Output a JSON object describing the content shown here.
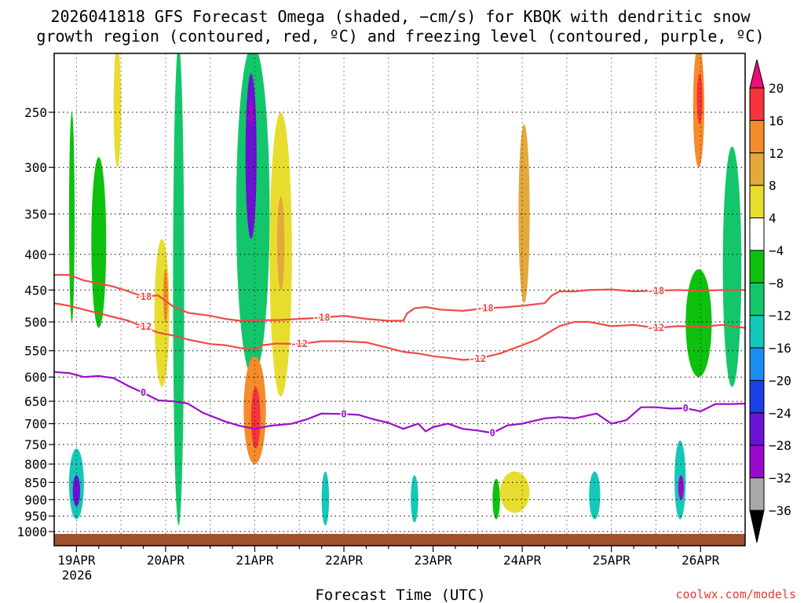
{
  "chart_data": {
    "type": "heatmap",
    "title_line1": "2026041818 GFS Forecast Omega (shaded, −cm/s) for KBQK with dendritic snow",
    "title_line2": "growth region (contoured, red, ºC) and freezing level (contoured, purple, ºC)",
    "xlabel": "Forecast Time (UTC)",
    "ylabel": "",
    "x_range_hours": [
      -6,
      180
    ],
    "x_ticks": [
      {
        "label": "19APR",
        "hour": 0
      },
      {
        "label": "20APR",
        "hour": 24
      },
      {
        "label": "21APR",
        "hour": 48
      },
      {
        "label": "22APR",
        "hour": 72
      },
      {
        "label": "23APR",
        "hour": 96
      },
      {
        "label": "24APR",
        "hour": 120
      },
      {
        "label": "25APR",
        "hour": 144
      },
      {
        "label": "26APR",
        "hour": 168
      }
    ],
    "x_year_label": "2026",
    "y_range_hPa": [
      1000,
      200
    ],
    "y_ticks": [
      250,
      300,
      350,
      400,
      450,
      500,
      550,
      600,
      650,
      700,
      750,
      800,
      850,
      900,
      950,
      1000
    ],
    "grid": true,
    "colorbar": {
      "labels": [
        20,
        16,
        12,
        8,
        4,
        -4,
        -8,
        -12,
        -16,
        -20,
        -24,
        -28,
        -32,
        -36
      ],
      "colors": [
        "#ec0d78",
        "#f7333b",
        "#f48c2b",
        "#e3a93b",
        "#e8dd2e",
        "#ffffff",
        "#0ec10e",
        "#14c66b",
        "#14c8b9",
        "#1a8df2",
        "#1a3fe6",
        "#6a13d3",
        "#9a08c9",
        "#a8a8a8",
        "#000000"
      ]
    },
    "contours": [
      {
        "name": "-18 ºC",
        "color": "#f04a44",
        "labels": [
          "-18",
          "-18",
          "-18",
          "-18"
        ],
        "points": [
          [
            -6,
            428
          ],
          [
            -2,
            428
          ],
          [
            2,
            436
          ],
          [
            6,
            440
          ],
          [
            10,
            445
          ],
          [
            14,
            452
          ],
          [
            18,
            460
          ],
          [
            22,
            458
          ],
          [
            26,
            475
          ],
          [
            30,
            485
          ],
          [
            36,
            490
          ],
          [
            40,
            495
          ],
          [
            44,
            498
          ],
          [
            48,
            497
          ],
          [
            54,
            497
          ],
          [
            60,
            495
          ],
          [
            66,
            493
          ],
          [
            72,
            490
          ],
          [
            78,
            495
          ],
          [
            84,
            498
          ],
          [
            88,
            498
          ],
          [
            89,
            486
          ],
          [
            91,
            478
          ],
          [
            94,
            476
          ],
          [
            98,
            480
          ],
          [
            104,
            482
          ],
          [
            110,
            478
          ],
          [
            116,
            476
          ],
          [
            120,
            474
          ],
          [
            126,
            470
          ],
          [
            128,
            458
          ],
          [
            130,
            452
          ],
          [
            134,
            452
          ],
          [
            138,
            450
          ],
          [
            144,
            449
          ],
          [
            150,
            452
          ],
          [
            156,
            451
          ],
          [
            162,
            450
          ],
          [
            168,
            451
          ],
          [
            174,
            450
          ],
          [
            180,
            450
          ]
        ]
      },
      {
        "name": "-12 ºC",
        "color": "#f04a44",
        "labels": [
          "-12",
          "-12",
          "-12",
          "-12"
        ],
        "points": [
          [
            -6,
            470
          ],
          [
            -2,
            474
          ],
          [
            2,
            480
          ],
          [
            6,
            486
          ],
          [
            10,
            492
          ],
          [
            14,
            498
          ],
          [
            18,
            508
          ],
          [
            22,
            518
          ],
          [
            26,
            523
          ],
          [
            30,
            530
          ],
          [
            36,
            538
          ],
          [
            40,
            540
          ],
          [
            44,
            545
          ],
          [
            48,
            548
          ],
          [
            50,
            540
          ],
          [
            54,
            537
          ],
          [
            60,
            538
          ],
          [
            66,
            533
          ],
          [
            72,
            533
          ],
          [
            78,
            535
          ],
          [
            84,
            545
          ],
          [
            88,
            552
          ],
          [
            92,
            555
          ],
          [
            96,
            560
          ],
          [
            100,
            563
          ],
          [
            104,
            567
          ],
          [
            108,
            565
          ],
          [
            114,
            555
          ],
          [
            120,
            540
          ],
          [
            124,
            530
          ],
          [
            126,
            522
          ],
          [
            130,
            507
          ],
          [
            134,
            500
          ],
          [
            138,
            500
          ],
          [
            144,
            507
          ],
          [
            150,
            505
          ],
          [
            156,
            510
          ],
          [
            162,
            507
          ],
          [
            168,
            508
          ],
          [
            174,
            505
          ],
          [
            180,
            510
          ]
        ]
      },
      {
        "name": "0 ºC freezing level",
        "color": "#9a0fc8",
        "labels": [
          "0",
          "0",
          "0",
          "0"
        ],
        "points": [
          [
            -6,
            590
          ],
          [
            -2,
            592
          ],
          [
            2,
            600
          ],
          [
            6,
            598
          ],
          [
            10,
            602
          ],
          [
            14,
            618
          ],
          [
            18,
            632
          ],
          [
            22,
            648
          ],
          [
            26,
            650
          ],
          [
            30,
            655
          ],
          [
            34,
            675
          ],
          [
            40,
            695
          ],
          [
            44,
            705
          ],
          [
            48,
            712
          ],
          [
            52,
            705
          ],
          [
            58,
            700
          ],
          [
            62,
            690
          ],
          [
            66,
            677
          ],
          [
            72,
            678
          ],
          [
            76,
            680
          ],
          [
            80,
            690
          ],
          [
            84,
            698
          ],
          [
            88,
            712
          ],
          [
            92,
            700
          ],
          [
            94,
            718
          ],
          [
            96,
            708
          ],
          [
            100,
            700
          ],
          [
            104,
            712
          ],
          [
            108,
            716
          ],
          [
            112,
            722
          ],
          [
            116,
            704
          ],
          [
            120,
            700
          ],
          [
            126,
            688
          ],
          [
            130,
            685
          ],
          [
            134,
            688
          ],
          [
            140,
            677
          ],
          [
            144,
            700
          ],
          [
            148,
            692
          ],
          [
            152,
            663
          ],
          [
            156,
            663
          ],
          [
            160,
            666
          ],
          [
            164,
            665
          ],
          [
            168,
            672
          ],
          [
            172,
            656
          ],
          [
            176,
            656
          ],
          [
            180,
            655
          ]
        ]
      }
    ],
    "omega_features": [
      {
        "hour_range": [
          -2,
          -0.5
        ],
        "hPa_range": [
          500,
          250
        ],
        "value": -8
      },
      {
        "hour_range": [
          -2,
          2
        ],
        "hPa_range": [
          960,
          760
        ],
        "value": -14
      },
      {
        "hour_range": [
          -1,
          1
        ],
        "hPa_range": [
          920,
          830
        ],
        "value": -28
      },
      {
        "hour_range": [
          4,
          8
        ],
        "hPa_range": [
          510,
          290
        ],
        "value": -8
      },
      {
        "hour_range": [
          10,
          12
        ],
        "hPa_range": [
          300,
          200
        ],
        "value": 6
      },
      {
        "hour_range": [
          21,
          25
        ],
        "hPa_range": [
          620,
          380
        ],
        "value": 7
      },
      {
        "hour_range": [
          23.5,
          24.5
        ],
        "hPa_range": [
          500,
          420
        ],
        "value": 14
      },
      {
        "hour_range": [
          26,
          29
        ],
        "hPa_range": [
          980,
          200
        ],
        "value": -12
      },
      {
        "hour_range": [
          43,
          52
        ],
        "hPa_range": [
          600,
          200
        ],
        "value": -12
      },
      {
        "hour_range": [
          45.5,
          48.5
        ],
        "hPa_range": [
          380,
          220
        ],
        "value": -26
      },
      {
        "hour_range": [
          46.5,
          47.5
        ],
        "hPa_range": [
          260,
          240
        ],
        "value": -32
      },
      {
        "hour_range": [
          45,
          51
        ],
        "hPa_range": [
          800,
          560
        ],
        "value": 12
      },
      {
        "hour_range": [
          47,
          49.5
        ],
        "hPa_range": [
          760,
          620
        ],
        "value": 19
      },
      {
        "hour_range": [
          52,
          58
        ],
        "hPa_range": [
          640,
          250
        ],
        "value": 6
      },
      {
        "hour_range": [
          54,
          56
        ],
        "hPa_range": [
          450,
          330
        ],
        "value": 11
      },
      {
        "hour_range": [
          66,
          68
        ],
        "hPa_range": [
          980,
          820
        ],
        "value": -14
      },
      {
        "hour_range": [
          90,
          92
        ],
        "hPa_range": [
          970,
          830
        ],
        "value": -14
      },
      {
        "hour_range": [
          112,
          114
        ],
        "hPa_range": [
          960,
          840
        ],
        "value": -8
      },
      {
        "hour_range": [
          114,
          122
        ],
        "hPa_range": [
          940,
          820
        ],
        "value": 7
      },
      {
        "hour_range": [
          119,
          122
        ],
        "hPa_range": [
          470,
          260
        ],
        "value": 9
      },
      {
        "hour_range": [
          138,
          141
        ],
        "hPa_range": [
          960,
          820
        ],
        "value": -14
      },
      {
        "hour_range": [
          161,
          164
        ],
        "hPa_range": [
          960,
          740
        ],
        "value": -14
      },
      {
        "hour_range": [
          162,
          163.5
        ],
        "hPa_range": [
          900,
          830
        ],
        "value": -30
      },
      {
        "hour_range": [
          166,
          169
        ],
        "hPa_range": [
          300,
          200
        ],
        "value": 12
      },
      {
        "hour_range": [
          167,
          168.5
        ],
        "hPa_range": [
          260,
          220
        ],
        "value": 17
      },
      {
        "hour_range": [
          164,
          171
        ],
        "hPa_range": [
          600,
          420
        ],
        "value": -8
      },
      {
        "hour_range": [
          174,
          179
        ],
        "hPa_range": [
          620,
          280
        ],
        "value": -10
      }
    ],
    "ground_color": "#a0522d"
  },
  "footer": {
    "credit": "coolwx.com/models"
  }
}
